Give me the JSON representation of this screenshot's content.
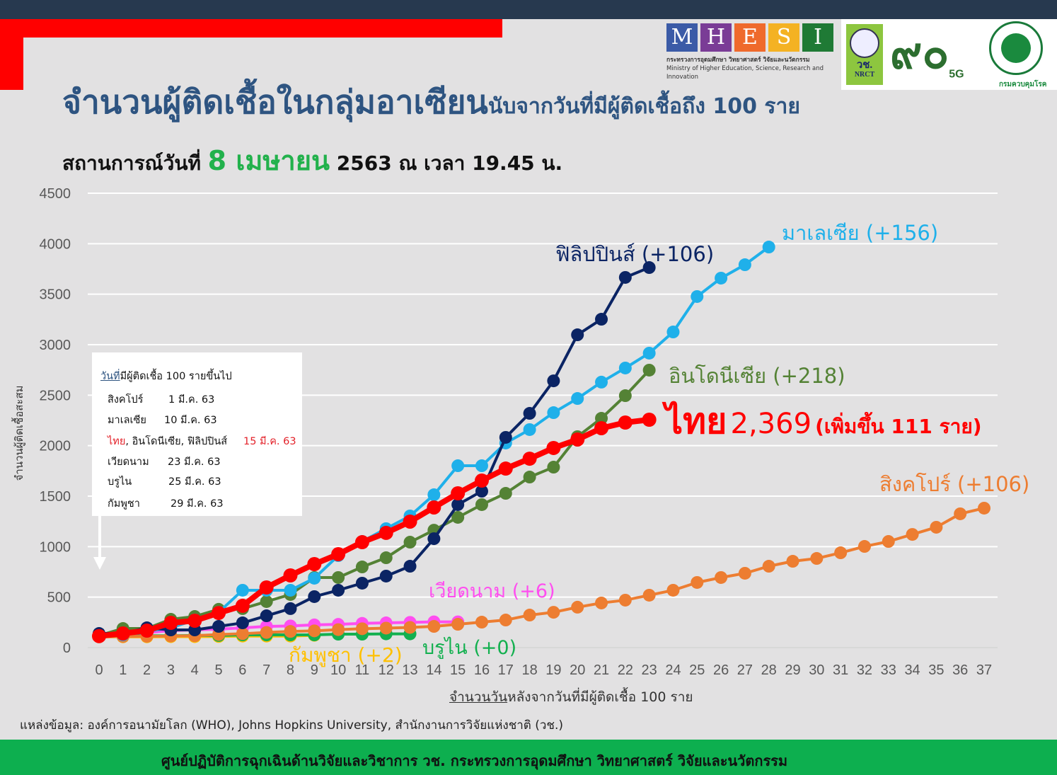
{
  "header": {
    "title_main": "จำนวนผู้ติดเชื้อในกลุ่มอาเซียน",
    "title_suffix": "นับจากวันที่มีผู้ติดเชื้อถึง 100 ราย",
    "subtitle_prefix": "สถานการณ์วันที่",
    "subtitle_date": "8 เมษายน",
    "subtitle_suffix": "2563 ณ เวลา 19.45 น."
  },
  "logos": {
    "mhesi_letters": [
      "M",
      "H",
      "E",
      "S",
      "I"
    ],
    "mhesi_colors": [
      "#3b5ba7",
      "#7a3c96",
      "#ef6a2c",
      "#f4b223",
      "#1f7a35"
    ],
    "mhesi_th": "กระทรวงการอุดมศึกษา วิทยาศาสตร์ วิจัยและนวัตกรรม",
    "mhesi_en": "Ministry of Higher Education, Science, Research and Innovation",
    "nrct_th": "วช.",
    "nrct_en": "NRCT",
    "anniv": "๙๐",
    "anniv_sub": "5G",
    "moph_sub": "กรมควบคุมโรค"
  },
  "legend_box": {
    "heading_underlined": "วันที่",
    "heading_rest": "มีผู้ติดเชื้อ 100 รายขึ้นไป",
    "rows": [
      {
        "country": "สิงคโปร์",
        "date": "1 มี.ค. 63"
      },
      {
        "country": "มาเลเซีย",
        "date": "10 มี.ค. 63"
      },
      {
        "country_red": "ไทย",
        "country": ", อินโดนีเซีย, ฟิลิปปินส์",
        "date": "15 มี.ค. 63"
      },
      {
        "country": "เวียดนาม",
        "date": "23 มี.ค. 63"
      },
      {
        "country": "บรูไน",
        "date": "25 มี.ค. 63"
      },
      {
        "country": "กัมพูชา",
        "date": "29 มี.ค. 63"
      }
    ]
  },
  "series_labels": {
    "philippines": "ฟิลิปปินส์ (+106)",
    "malaysia": "มาเลเซีย (+156)",
    "indonesia": "อินโดนีเซีย (+218)",
    "thailand_name": "ไทย",
    "thailand_total": "2,369",
    "thailand_note": "(เพิ่มขึ้น 111 ราย)",
    "singapore": "สิงคโปร์ (+106)",
    "vietnam": "เวียดนาม (+6)",
    "brunei": "บรูไน (+0)",
    "cambodia": "กัมพูชา (+2)"
  },
  "axes": {
    "ylabel": "จำนวนผู้ติดเชื้อสะสม",
    "xlabel_underlined": "จำนวนวัน",
    "xlabel_rest": "หลังจากวันที่มีผู้ติดเชื้อ 100 ราย"
  },
  "source": "แหล่งข้อมูล: องค์การอนามัยโลก (WHO), Johns Hopkins University, สำนักงานการวิจัยแห่งชาติ (วช.)",
  "footer": "ศูนย์ปฏิบัติการฉุกเฉินด้านวิจัยและวิชาการ   วช.   กระทรวงการอุดมศึกษา วิทยาศาสตร์ วิจัยและนวัตกรรม",
  "chart_data": {
    "type": "line",
    "title": "จำนวนผู้ติดเชื้อในกลุ่มอาเซียน นับจากวันที่มีผู้ติดเชื้อถึง 100 ราย",
    "xlabel": "จำนวนวันหลังจากวันที่มีผู้ติดเชื้อ 100 ราย",
    "ylabel": "จำนวนผู้ติดเชื้อสะสม",
    "ylim": [
      0,
      4500
    ],
    "yticks": [
      0,
      500,
      1000,
      1500,
      2000,
      2500,
      3000,
      3500,
      4000,
      4500
    ],
    "xlim": [
      0,
      37
    ],
    "x": [
      0,
      1,
      2,
      3,
      4,
      5,
      6,
      7,
      8,
      9,
      10,
      11,
      12,
      13,
      14,
      15,
      16,
      17,
      18,
      19,
      20,
      21,
      22,
      23,
      24,
      25,
      26,
      27,
      28,
      29,
      30,
      31,
      32,
      33,
      34,
      35,
      36,
      37
    ],
    "grid": true,
    "legend": "inline labels",
    "series": [
      {
        "name": "สิงคโปร์",
        "color": "#ed7d31",
        "values": [
          108,
          110,
          112,
          115,
          117,
          130,
          138,
          150,
          160,
          166,
          178,
          187,
          193,
          200,
          210,
          231,
          252,
          273,
          322,
          350,
          400,
          442,
          470,
          519,
          568,
          645,
          694,
          736,
          806,
          855,
          883,
          939,
          1002,
          1051,
          1121,
          1192,
          1325,
          1381
        ]
      },
      {
        "name": "มาเลเซีย",
        "color": "#1fb0ea",
        "values": [
          120,
          126,
          161,
          196,
          273,
          350,
          568,
          568,
          568,
          687,
          911,
          1051,
          1178,
          1304,
          1514,
          1801,
          1801,
          2026,
          2159,
          2327,
          2467,
          2629,
          2769,
          2916,
          3126,
          3477,
          3659,
          3792,
          3967
        ]
      },
      {
        "name": "ไทย",
        "color": "#ff0000",
        "values": [
          114,
          140,
          168,
          245,
          266,
          343,
          414,
          596,
          715,
          827,
          925,
          1044,
          1136,
          1248,
          1388,
          1528,
          1654,
          1773,
          1871,
          1977,
          2061,
          2173,
          2229,
          2257
        ]
      },
      {
        "name": "อินโดนีเซีย",
        "color": "#548235",
        "values": [
          120,
          189,
          189,
          280,
          308,
          379,
          386,
          456,
          526,
          694,
          694,
          799,
          890,
          1044,
          1163,
          1290,
          1416,
          1528,
          1689,
          1787,
          2089,
          2271,
          2495,
          2748
        ]
      },
      {
        "name": "ฟิลิปปินส์",
        "color": "#0b2464",
        "values": [
          140,
          140,
          196,
          175,
          175,
          210,
          245,
          315,
          386,
          505,
          568,
          638,
          708,
          806,
          1079,
          1416,
          1549,
          2082,
          2320,
          2642,
          3098,
          3252,
          3666,
          3764
        ]
      },
      {
        "name": "เวียดนาม",
        "color": "#ff4ef0",
        "values": [
          113,
          134,
          148,
          169,
          176,
          183,
          195,
          210,
          215,
          225,
          230,
          240,
          245,
          250,
          255,
          255
        ]
      },
      {
        "name": "บรูไน",
        "color": "#13b04f",
        "values": [
          114,
          114,
          117,
          117,
          120,
          120,
          126,
          126,
          126,
          126,
          133,
          133,
          136,
          136
        ]
      },
      {
        "name": "กัมพูชา",
        "color": "#ffc000",
        "values": [
          107,
          107,
          107,
          109,
          109,
          110,
          114,
          114,
          114,
          122
        ]
      }
    ],
    "annotations": [
      "ฟิลิปปินส์ (+106)",
      "มาเลเซีย (+156)",
      "อินโดนีเซีย (+218)",
      "ไทย 2,369 (เพิ่มขึ้น 111 ราย)",
      "สิงคโปร์ (+106)",
      "เวียดนาม (+6)",
      "บรูไน (+0)",
      "กัมพูชา (+2)"
    ]
  }
}
